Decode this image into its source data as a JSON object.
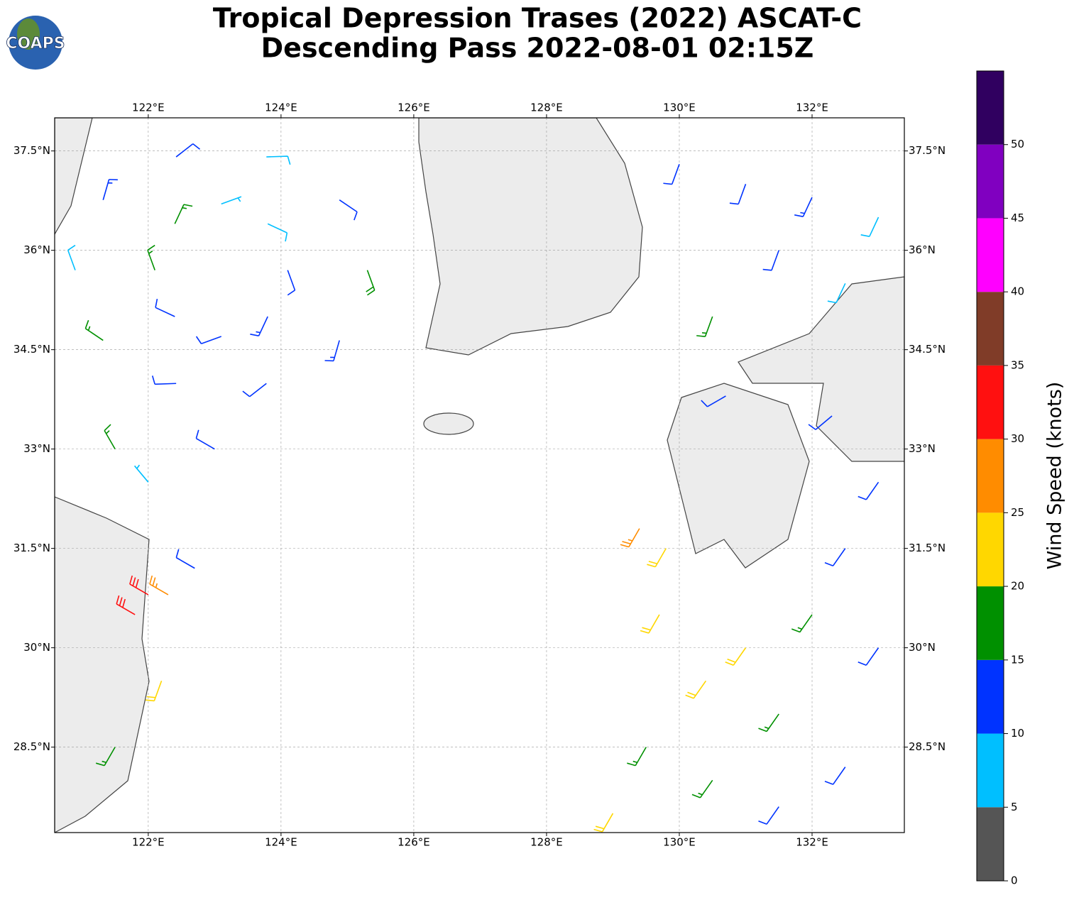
{
  "chart_data": {
    "type": "barbs",
    "title": "Tropical Depression Trases (2022) ASCAT-C",
    "subtitle": "Descending Pass 2022-08-01 02:15Z",
    "logo": "COAPS",
    "xlim": [
      120.59,
      133.39
    ],
    "ylim": [
      27.21,
      38.0
    ],
    "xticks": [
      {
        "value": 122,
        "label": "122°E"
      },
      {
        "value": 124,
        "label": "124°E"
      },
      {
        "value": 126,
        "label": "126°E"
      },
      {
        "value": 128,
        "label": "128°E"
      },
      {
        "value": 130,
        "label": "130°E"
      },
      {
        "value": 132,
        "label": "132°E"
      }
    ],
    "yticks": [
      {
        "value": 28.5,
        "label": "28.5°N"
      },
      {
        "value": 30,
        "label": "30°N"
      },
      {
        "value": 31.5,
        "label": "31.5°N"
      },
      {
        "value": 33,
        "label": "33°N"
      },
      {
        "value": 34.5,
        "label": "34.5°N"
      },
      {
        "value": 36,
        "label": "36°N"
      },
      {
        "value": 37.5,
        "label": "37.5°N"
      }
    ],
    "grid": true,
    "colorbar": {
      "label": "Wind Speed (knots)",
      "lim": [
        0,
        55
      ],
      "ticks": [
        0,
        5,
        10,
        15,
        20,
        25,
        30,
        35,
        40,
        45,
        50
      ],
      "colors": [
        "#555555",
        "#00bfff",
        "#0033ff",
        "#009000",
        "#ffd700",
        "#ff8c00",
        "#ff1010",
        "#803c28",
        "#ff00ff",
        "#8000c0",
        "#300060"
      ]
    },
    "barbs": [
      {
        "lon": 124.1,
        "lat": 35.7,
        "speed": 12,
        "dir": 160
      },
      {
        "lon": 123.8,
        "lat": 36.4,
        "speed": 8,
        "dir": 115
      },
      {
        "lon": 123.1,
        "lat": 36.7,
        "speed": 7,
        "dir": 70
      },
      {
        "lon": 122.4,
        "lat": 36.4,
        "speed": 17,
        "dir": 25
      },
      {
        "lon": 122.1,
        "lat": 35.7,
        "speed": 16,
        "dir": 340
      },
      {
        "lon": 122.4,
        "lat": 35.0,
        "speed": 12,
        "dir": 295
      },
      {
        "lon": 123.1,
        "lat": 34.7,
        "speed": 12,
        "dir": 250
      },
      {
        "lon": 123.8,
        "lat": 35.0,
        "speed": 13,
        "dir": 205
      },
      {
        "lon": 125.3,
        "lat": 35.7,
        "speed": 18,
        "dir": 160
      },
      {
        "lon": 124.88,
        "lat": 36.76,
        "speed": 12,
        "dir": 124
      },
      {
        "lon": 123.78,
        "lat": 37.41,
        "speed": 8,
        "dir": 88
      },
      {
        "lon": 122.42,
        "lat": 37.41,
        "speed": 12,
        "dir": 52
      },
      {
        "lon": 121.32,
        "lat": 36.76,
        "speed": 13,
        "dir": 16
      },
      {
        "lon": 120.9,
        "lat": 35.7,
        "speed": 8,
        "dir": 340
      },
      {
        "lon": 121.32,
        "lat": 34.64,
        "speed": 17,
        "dir": 304
      },
      {
        "lon": 122.42,
        "lat": 33.99,
        "speed": 12,
        "dir": 268
      },
      {
        "lon": 123.78,
        "lat": 33.99,
        "speed": 12,
        "dir": 232
      },
      {
        "lon": 124.88,
        "lat": 34.64,
        "speed": 13,
        "dir": 196
      },
      {
        "lon": 121.5,
        "lat": 33.0,
        "speed": 17,
        "dir": 330
      },
      {
        "lon": 122.0,
        "lat": 32.5,
        "speed": 7,
        "dir": 320
      },
      {
        "lon": 123.0,
        "lat": 33.0,
        "speed": 12,
        "dir": 300
      },
      {
        "lon": 122.0,
        "lat": 30.8,
        "speed": 32,
        "dir": 300
      },
      {
        "lon": 121.8,
        "lat": 30.5,
        "speed": 32,
        "dir": 300
      },
      {
        "lon": 122.3,
        "lat": 30.8,
        "speed": 27,
        "dir": 300
      },
      {
        "lon": 122.7,
        "lat": 31.2,
        "speed": 12,
        "dir": 300
      },
      {
        "lon": 121.5,
        "lat": 28.5,
        "speed": 17,
        "dir": 210
      },
      {
        "lon": 122.2,
        "lat": 29.5,
        "speed": 22,
        "dir": 200
      },
      {
        "lon": 130.0,
        "lat": 37.3,
        "speed": 12,
        "dir": 200
      },
      {
        "lon": 131.0,
        "lat": 37.0,
        "speed": 12,
        "dir": 200
      },
      {
        "lon": 132.0,
        "lat": 36.8,
        "speed": 13,
        "dir": 205
      },
      {
        "lon": 133.0,
        "lat": 36.5,
        "speed": 8,
        "dir": 205
      },
      {
        "lon": 130.5,
        "lat": 35.0,
        "speed": 17,
        "dir": 200
      },
      {
        "lon": 131.5,
        "lat": 36.0,
        "speed": 12,
        "dir": 200
      },
      {
        "lon": 132.5,
        "lat": 35.5,
        "speed": 8,
        "dir": 205
      },
      {
        "lon": 129.8,
        "lat": 31.5,
        "speed": 22,
        "dir": 210
      },
      {
        "lon": 129.7,
        "lat": 30.5,
        "speed": 22,
        "dir": 210
      },
      {
        "lon": 130.4,
        "lat": 29.5,
        "speed": 22,
        "dir": 215
      },
      {
        "lon": 131.0,
        "lat": 30.0,
        "speed": 22,
        "dir": 215
      },
      {
        "lon": 129.5,
        "lat": 28.5,
        "speed": 17,
        "dir": 210
      },
      {
        "lon": 130.5,
        "lat": 28.0,
        "speed": 17,
        "dir": 215
      },
      {
        "lon": 131.5,
        "lat": 29.0,
        "speed": 17,
        "dir": 215
      },
      {
        "lon": 132.0,
        "lat": 30.5,
        "speed": 17,
        "dir": 215
      },
      {
        "lon": 132.5,
        "lat": 31.5,
        "speed": 12,
        "dir": 215
      },
      {
        "lon": 133.0,
        "lat": 32.5,
        "speed": 12,
        "dir": 215
      },
      {
        "lon": 132.5,
        "lat": 28.2,
        "speed": 12,
        "dir": 215
      },
      {
        "lon": 131.5,
        "lat": 27.6,
        "speed": 12,
        "dir": 215
      },
      {
        "lon": 129.4,
        "lat": 31.8,
        "speed": 27,
        "dir": 210
      },
      {
        "lon": 130.7,
        "lat": 33.8,
        "speed": 12,
        "dir": 240
      },
      {
        "lon": 132.3,
        "lat": 33.5,
        "speed": 12,
        "dir": 230
      },
      {
        "lon": 133.0,
        "lat": 30.0,
        "speed": 12,
        "dir": 215
      },
      {
        "lon": 129.0,
        "lat": 27.5,
        "speed": 22,
        "dir": 210
      }
    ]
  }
}
